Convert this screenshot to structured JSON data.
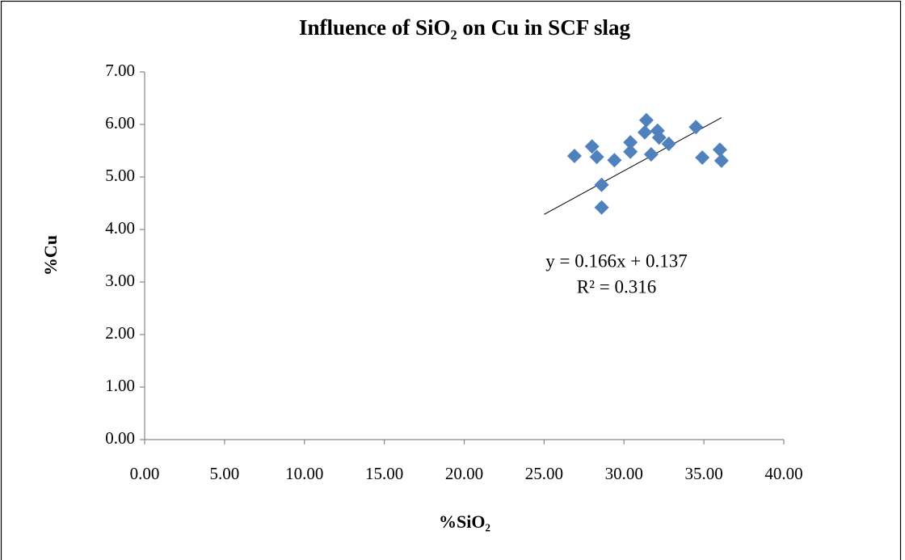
{
  "chart_data": {
    "type": "scatter",
    "title": "Influence of SiO₂ on Cu in SCF slag",
    "x_label": "%SiO₂",
    "y_label": "%Cu",
    "color": "#4f81bd",
    "xlim": [
      0,
      40
    ],
    "ylim": [
      0,
      7
    ],
    "xticks": [
      {
        "value": 0,
        "label": "0.00"
      },
      {
        "value": 5,
        "label": "5.00"
      },
      {
        "value": 10,
        "label": "10.00"
      },
      {
        "value": 15,
        "label": "15.00"
      },
      {
        "value": 20,
        "label": "20.00"
      },
      {
        "value": 25,
        "label": "25.00"
      },
      {
        "value": 30,
        "label": "30.00"
      },
      {
        "value": 35,
        "label": "35.00"
      },
      {
        "value": 40,
        "label": "40.00"
      }
    ],
    "yticks": [
      {
        "value": 0,
        "label": "0.00"
      },
      {
        "value": 1,
        "label": "1.00"
      },
      {
        "value": 2,
        "label": "2.00"
      },
      {
        "value": 3,
        "label": "3.00"
      },
      {
        "value": 4,
        "label": "4.00"
      },
      {
        "value": 5,
        "label": "5.00"
      },
      {
        "value": 6,
        "label": "6.00"
      },
      {
        "value": 7,
        "label": "7.00"
      }
    ],
    "x": [
      26.9,
      28.0,
      28.3,
      28.6,
      28.6,
      29.4,
      30.4,
      30.4,
      31.4,
      31.3,
      31.7,
      32.1,
      32.2,
      32.8,
      34.5,
      34.9,
      36.0,
      36.1
    ],
    "values": [
      5.4,
      5.58,
      5.38,
      4.85,
      4.42,
      5.32,
      5.66,
      5.48,
      6.08,
      5.85,
      5.43,
      5.88,
      5.75,
      5.63,
      5.95,
      5.37,
      5.52,
      5.31
    ],
    "trendline": {
      "equation": "y = 0.166x + 0.137",
      "r_squared": "R² = 0.316",
      "slope": 0.166,
      "intercept": 0.137,
      "x_range": [
        25,
        36.1
      ]
    }
  }
}
